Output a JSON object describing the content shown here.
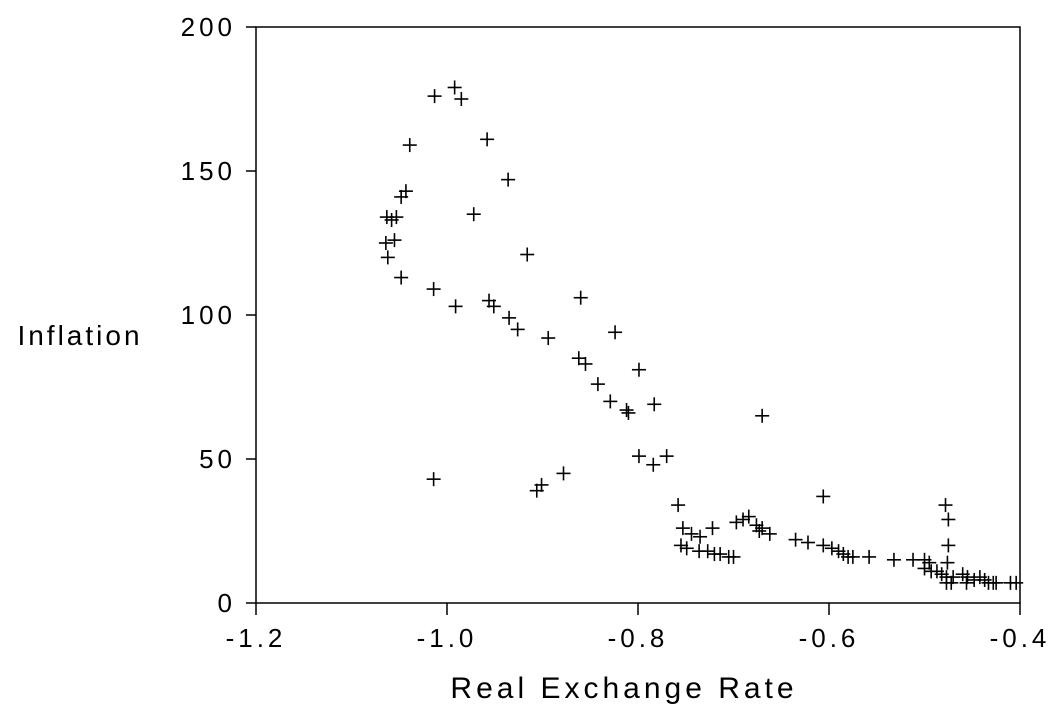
{
  "chart_data": {
    "type": "scatter",
    "title": "",
    "xlabel": "Real Exchange Rate",
    "ylabel": "Inflation",
    "xlim": [
      -1.2,
      -0.4
    ],
    "ylim": [
      0,
      200
    ],
    "xticks": [
      -1.2,
      -1.0,
      -0.8,
      -0.6,
      -0.4
    ],
    "xtick_labels": [
      "-1.2",
      "-1.0",
      "-0.8",
      "-0.6",
      "-0.4"
    ],
    "yticks": [
      0,
      50,
      100,
      150,
      200
    ],
    "ytick_labels": [
      "0",
      "50",
      "100",
      "150",
      "200"
    ],
    "grid": false,
    "marker": "plus",
    "color": "#000000",
    "series": [
      {
        "points": [
          [
            -0.992,
            179
          ],
          [
            -1.013,
            176
          ],
          [
            -0.985,
            175
          ],
          [
            -0.958,
            161
          ],
          [
            -1.039,
            159
          ],
          [
            -0.936,
            147
          ],
          [
            -1.043,
            143
          ],
          [
            -1.048,
            141
          ],
          [
            -0.972,
            135
          ],
          [
            -1.063,
            134
          ],
          [
            -1.058,
            133
          ],
          [
            -1.053,
            134
          ],
          [
            -1.055,
            126
          ],
          [
            -1.064,
            125
          ],
          [
            -1.062,
            120
          ],
          [
            -0.916,
            121
          ],
          [
            -1.048,
            113
          ],
          [
            -1.014,
            109
          ],
          [
            -0.86,
            106
          ],
          [
            -0.956,
            105
          ],
          [
            -0.991,
            103
          ],
          [
            -0.951,
            103
          ],
          [
            -0.935,
            99
          ],
          [
            -0.926,
            95
          ],
          [
            -0.824,
            94
          ],
          [
            -0.894,
            92
          ],
          [
            -0.862,
            85
          ],
          [
            -0.855,
            83
          ],
          [
            -0.799,
            81
          ],
          [
            -0.842,
            76
          ],
          [
            -0.829,
            70
          ],
          [
            -0.812,
            67
          ],
          [
            -0.783,
            69
          ],
          [
            -0.81,
            66
          ],
          [
            -0.67,
            65
          ],
          [
            -0.799,
            51
          ],
          [
            -0.77,
            51
          ],
          [
            -0.784,
            48
          ],
          [
            -0.878,
            45
          ],
          [
            -0.901,
            41
          ],
          [
            -0.906,
            39
          ],
          [
            -1.014,
            43
          ],
          [
            -0.758,
            34
          ],
          [
            -0.606,
            37
          ],
          [
            -0.478,
            34
          ],
          [
            -0.475,
            29
          ],
          [
            -0.753,
            26
          ],
          [
            -0.744,
            24
          ],
          [
            -0.735,
            23
          ],
          [
            -0.722,
            26
          ],
          [
            -0.697,
            28
          ],
          [
            -0.69,
            29
          ],
          [
            -0.684,
            30
          ],
          [
            -0.676,
            27
          ],
          [
            -0.67,
            26
          ],
          [
            -0.662,
            24
          ],
          [
            -0.673,
            25
          ],
          [
            -0.755,
            20
          ],
          [
            -0.749,
            19
          ],
          [
            -0.736,
            18
          ],
          [
            -0.727,
            18
          ],
          [
            -0.72,
            17
          ],
          [
            -0.714,
            17
          ],
          [
            -0.705,
            16
          ],
          [
            -0.7,
            16
          ],
          [
            -0.635,
            22
          ],
          [
            -0.622,
            21
          ],
          [
            -0.606,
            20
          ],
          [
            -0.597,
            19
          ],
          [
            -0.59,
            18
          ],
          [
            -0.585,
            17
          ],
          [
            -0.58,
            16
          ],
          [
            -0.575,
            16
          ],
          [
            -0.558,
            16
          ],
          [
            -0.532,
            15
          ],
          [
            -0.512,
            15
          ],
          [
            -0.5,
            15
          ],
          [
            -0.495,
            14
          ],
          [
            -0.5,
            12
          ],
          [
            -0.493,
            11
          ],
          [
            -0.475,
            20
          ],
          [
            -0.476,
            14
          ],
          [
            -0.487,
            11
          ],
          [
            -0.482,
            10
          ],
          [
            -0.477,
            9
          ],
          [
            -0.472,
            7
          ],
          [
            -0.477,
            7
          ],
          [
            -0.47,
            9
          ],
          [
            -0.46,
            10
          ],
          [
            -0.455,
            9
          ],
          [
            -0.448,
            8
          ],
          [
            -0.442,
            9
          ],
          [
            -0.437,
            8
          ],
          [
            -0.433,
            7
          ],
          [
            -0.428,
            7
          ],
          [
            -0.456,
            7
          ],
          [
            -0.425,
            7
          ],
          [
            -0.41,
            7
          ],
          [
            -0.404,
            7
          ]
        ]
      }
    ]
  }
}
